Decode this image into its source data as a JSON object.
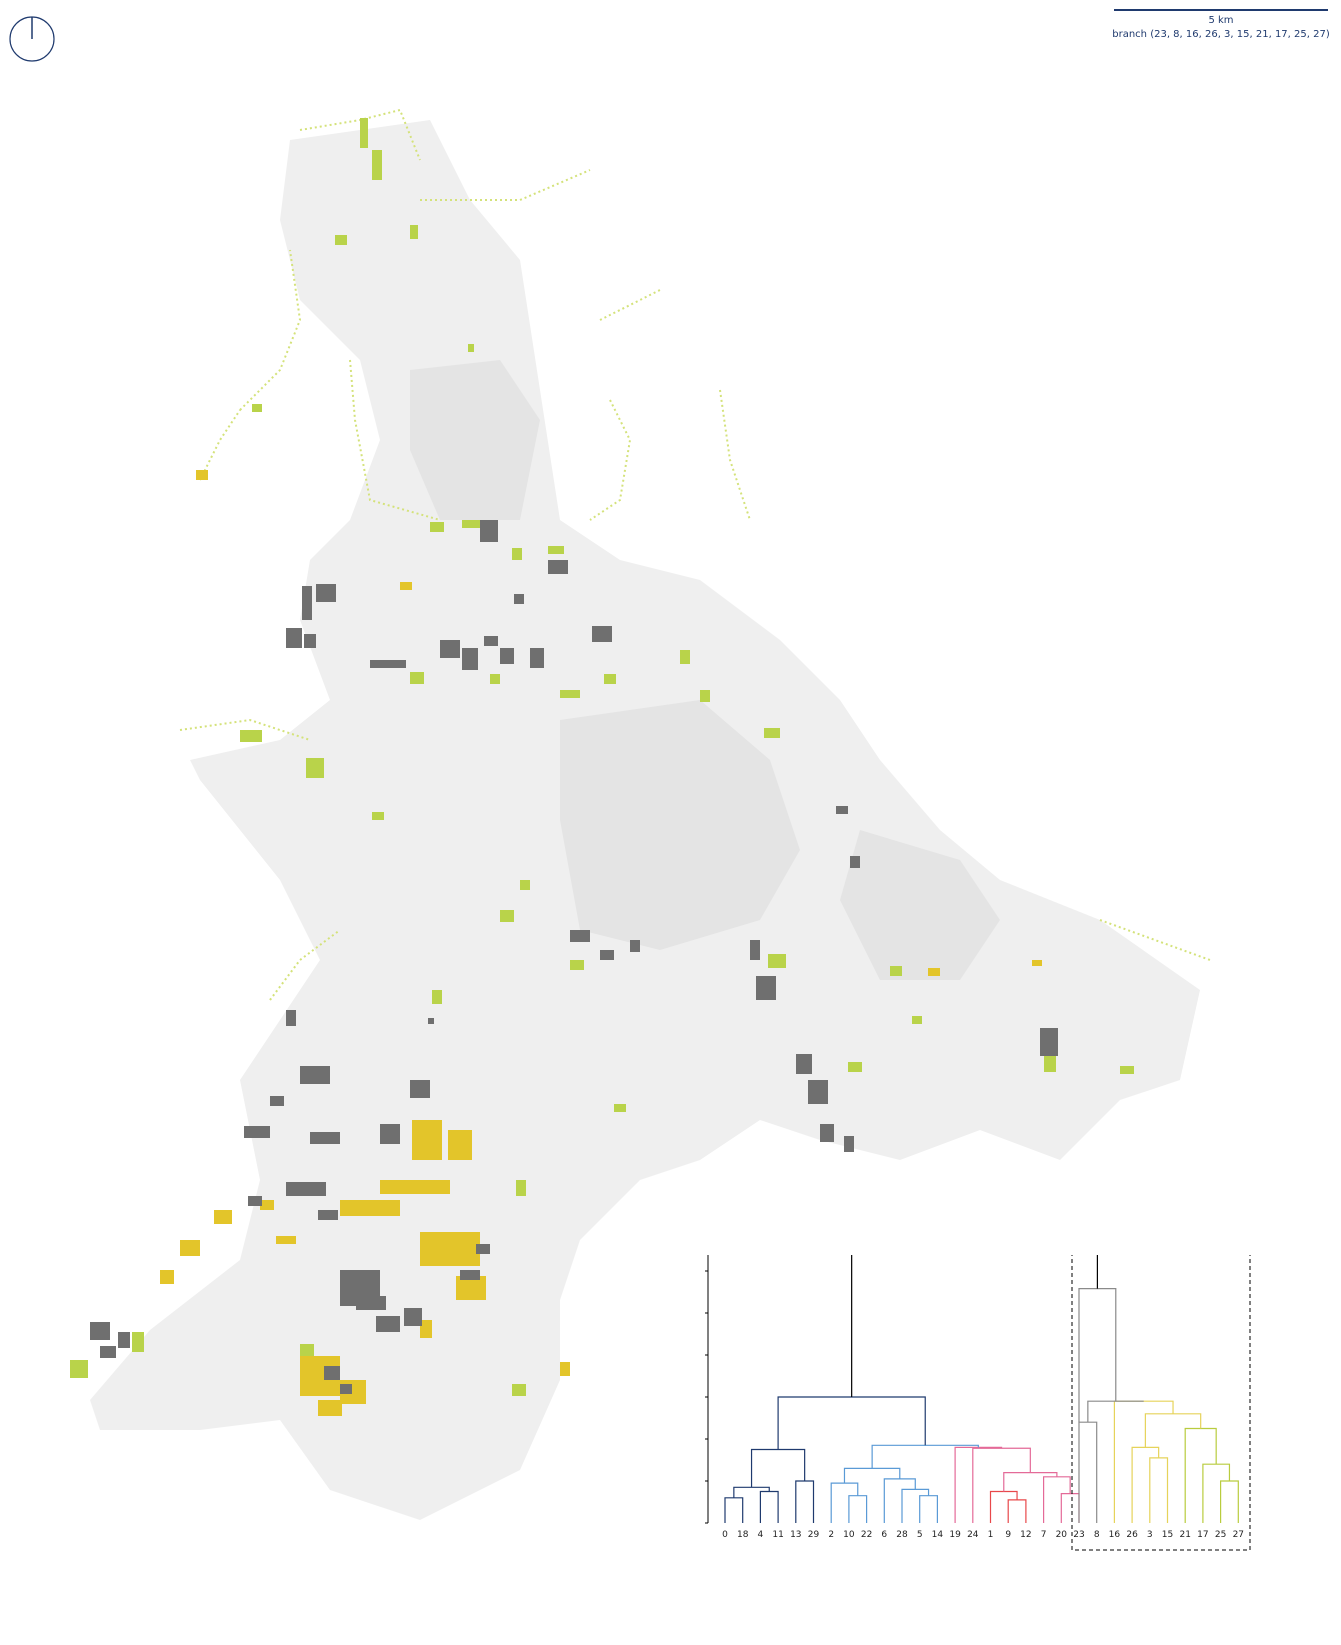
{
  "scale_bar": {
    "distance_label": "5 km",
    "branch_label": "branch (23, 8, 16, 26, 3, 15, 21, 17, 25, 27)"
  },
  "colors": {
    "accent": "#1f3a6e",
    "industrial_gray": "#6f6f6f",
    "green": "#b9d34a",
    "yellow": "#e3c52a",
    "background_buildings": "#ececec"
  },
  "dendrogram": {
    "y_ticks": [
      "0",
      "10",
      "20",
      "30",
      "40",
      "50",
      "60",
      "70"
    ],
    "leaf_labels": [
      "0",
      "18",
      "4",
      "11",
      "13",
      "29",
      "2",
      "10",
      "22",
      "6",
      "28",
      "5",
      "14",
      "19",
      "24",
      "1",
      "9",
      "12",
      "7",
      "20",
      "23",
      "8",
      "16",
      "26",
      "3",
      "15",
      "21",
      "17",
      "25",
      "27"
    ],
    "highlighted_branch": [
      "23",
      "8",
      "16",
      "26",
      "3",
      "15",
      "21",
      "17",
      "25",
      "27"
    ],
    "cluster_colors": {
      "navy": "#1f3a6e",
      "blue": "#5a9ad6",
      "pink": "#e46a98",
      "red": "#e8484a",
      "black": "#000000",
      "gray": "#8a8a8a",
      "yellow": "#e6d35a",
      "olive": "#b9cc3e"
    }
  }
}
